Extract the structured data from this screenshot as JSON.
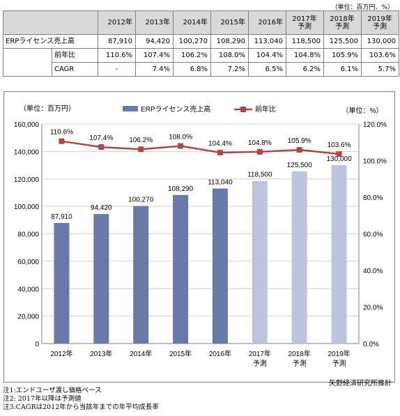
{
  "unit_top": "（単位：百万円、%）",
  "table": {
    "years": [
      "2012年",
      "2013年",
      "2014年",
      "2015年",
      "2016年",
      "2017年\n予測",
      "2018年\n予測",
      "2019年\n予測"
    ],
    "rows": [
      {
        "label": "ERPライセンス売上高",
        "values": [
          "87,910",
          "94,420",
          "100,270",
          "108,290",
          "113,040",
          "118,500",
          "125,500",
          "130,000"
        ]
      },
      {
        "label": "前年比",
        "values": [
          "110.6%",
          "107.4%",
          "106.2%",
          "108.0%",
          "104.4%",
          "104.8%",
          "105.9%",
          "103.6%"
        ]
      },
      {
        "label": "CAGR",
        "values": [
          "-",
          "7.4%",
          "6.8%",
          "7.2%",
          "6.5%",
          "6.2%",
          "6.1%",
          "5.7%"
        ]
      }
    ]
  },
  "chart_data": {
    "type": "bar",
    "categories": [
      "2012年",
      "2013年",
      "2014年",
      "2015年",
      "2016年",
      "2017年\n予測",
      "2018年\n予測",
      "2019年\n予測"
    ],
    "series": [
      {
        "name": "ERPライセンス売上高",
        "kind": "bar",
        "axis": "left",
        "values": [
          87910,
          94420,
          100270,
          108290,
          113040,
          118500,
          125500,
          130000
        ],
        "labels": [
          "87,910",
          "94,420",
          "100,270",
          "108,290",
          "113,040",
          "118,500",
          "125,500",
          "130,000"
        ],
        "forecast_from_index": 5
      },
      {
        "name": "前年比",
        "kind": "line",
        "axis": "right",
        "values": [
          110.6,
          107.4,
          106.2,
          108.0,
          104.4,
          104.8,
          105.9,
          103.6
        ],
        "labels": [
          "110.6%",
          "107.4%",
          "106.2%",
          "108.0%",
          "104.4%",
          "104.8%",
          "105.9%",
          "103.6%"
        ]
      }
    ],
    "yleft_unit": "（単位：百万円）",
    "yright_unit": "（単位：%）",
    "ylim_left": [
      0,
      160000
    ],
    "ylim_right": [
      0,
      120
    ],
    "yticks_left": [
      "0",
      "20,000",
      "40,000",
      "60,000",
      "80,000",
      "100,000",
      "120,000",
      "140,000",
      "160,000"
    ],
    "yticks_right": [
      "0.0%",
      "20.0%",
      "40.0%",
      "60.0%",
      "80.0%",
      "100.0%",
      "120.0%"
    ],
    "grid": true,
    "legend_position": "top-center",
    "colors": {
      "actual": "#6a7aa8",
      "forecast": "#bcc4de",
      "line": "#b04644"
    }
  },
  "source": "矢野経済研究所推計",
  "notes": [
    "注1:エンドユーザ渡し価格ベース",
    "注2: 2017年以降は予測値",
    "注3:CAGRは2012年から当該年までの年平均成長率"
  ]
}
